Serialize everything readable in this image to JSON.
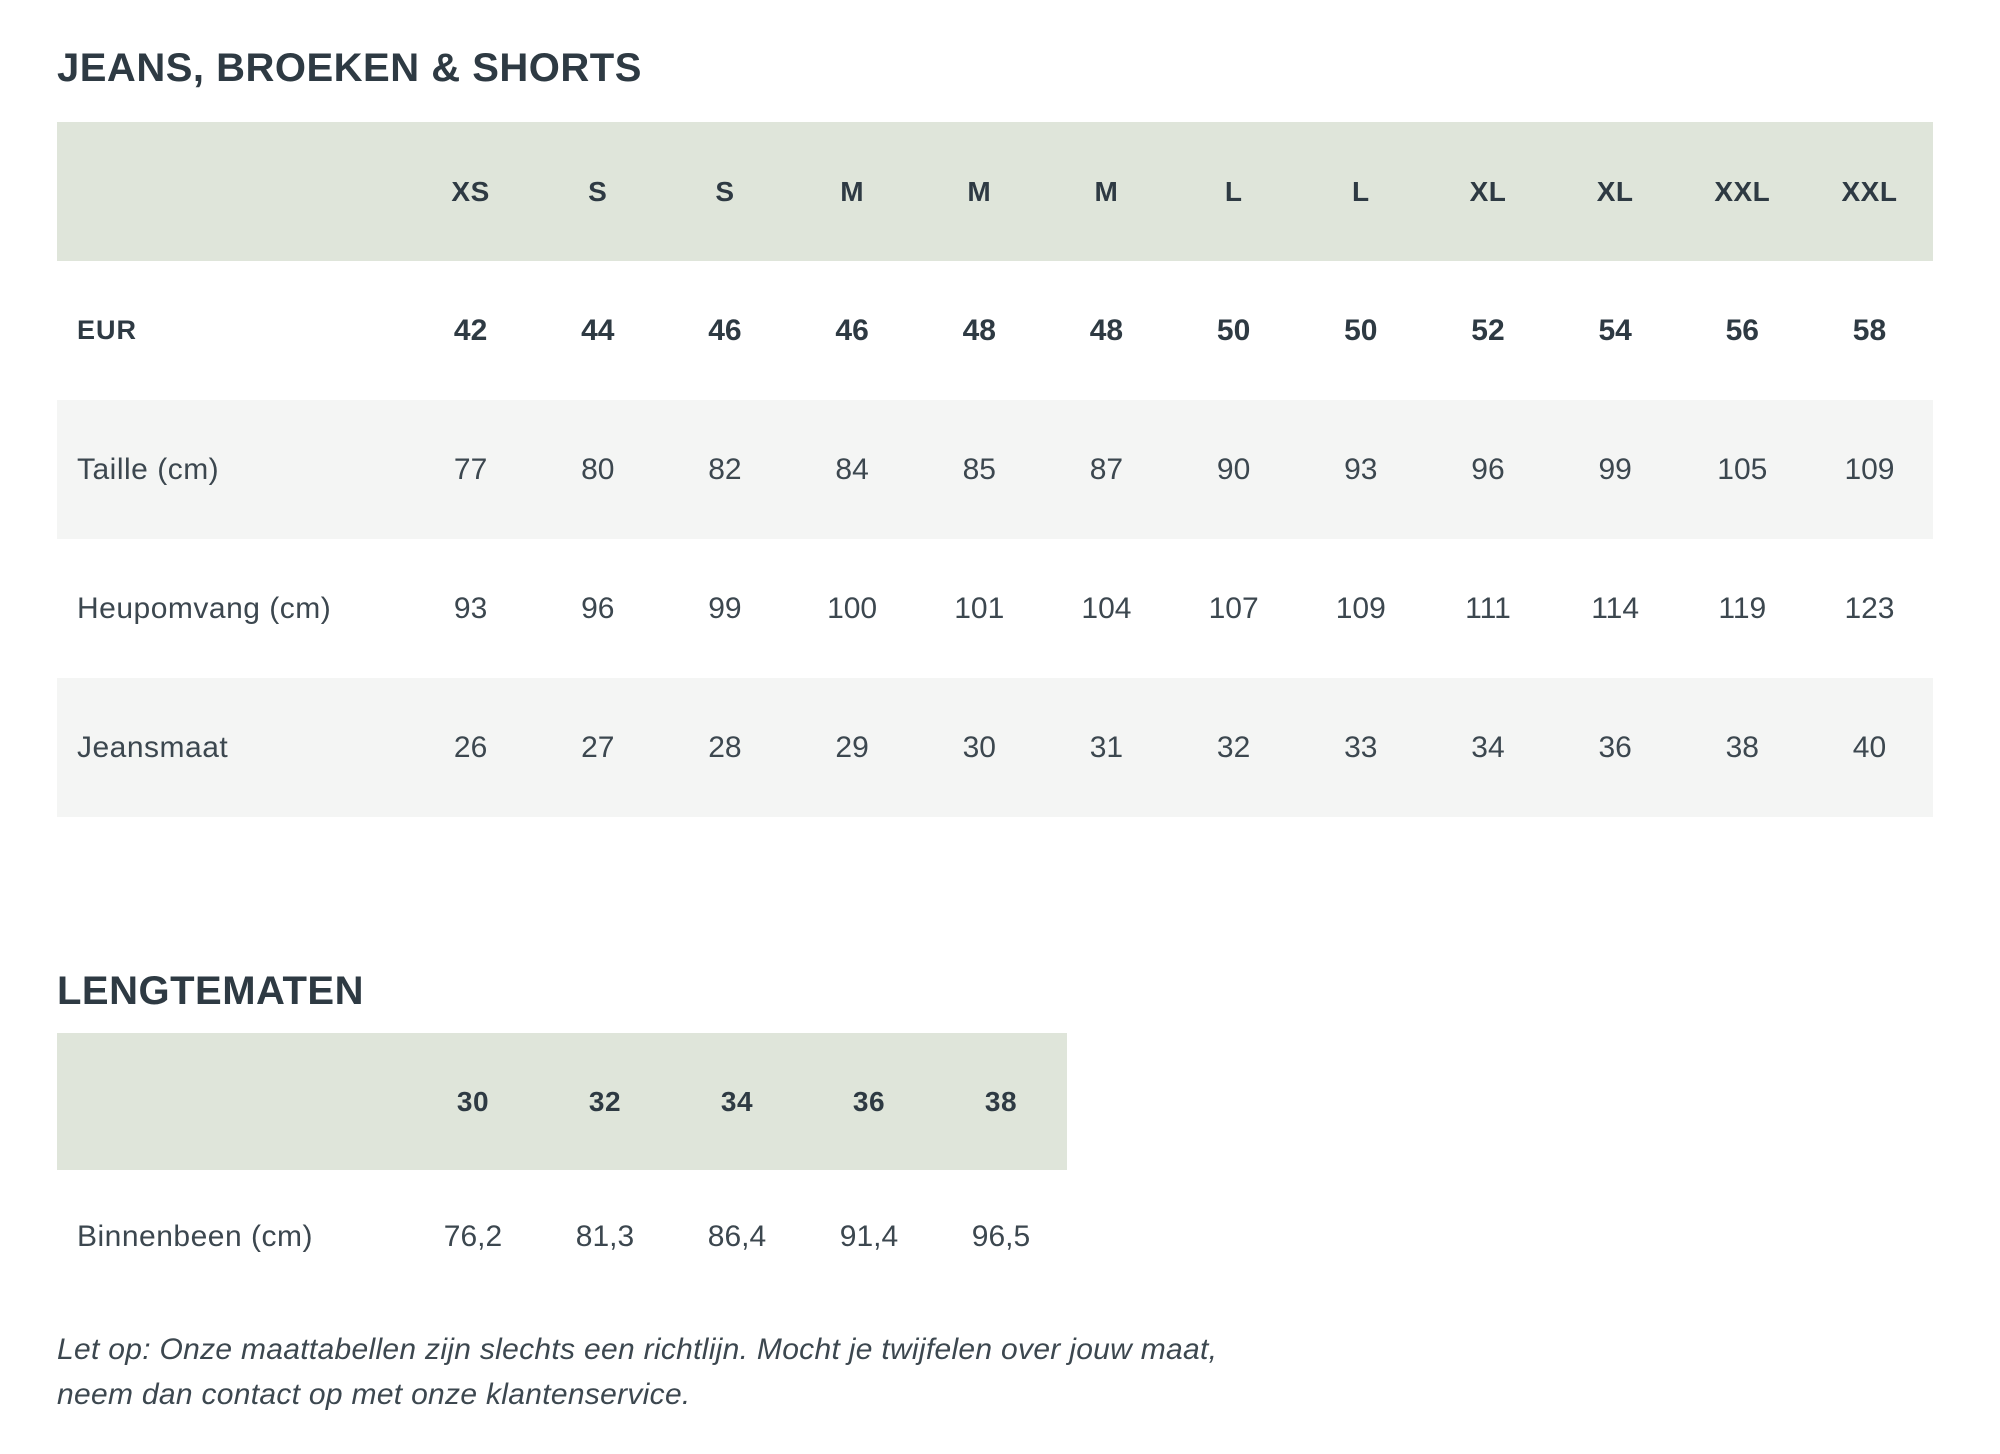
{
  "colors": {
    "header_bg": "#dfe5da",
    "stripe_bg": "#f4f5f4",
    "title_color": "#2e3a43",
    "text_color": "#3c474f"
  },
  "section1": {
    "title": "JEANS, BROEKEN & SHORTS",
    "table": {
      "size_headers": [
        "XS",
        "S",
        "S",
        "M",
        "M",
        "M",
        "L",
        "L",
        "XL",
        "XL",
        "XXL",
        "XXL"
      ],
      "rows": [
        {
          "label": "EUR",
          "values": [
            "42",
            "44",
            "46",
            "46",
            "48",
            "48",
            "50",
            "50",
            "52",
            "54",
            "56",
            "58"
          ]
        },
        {
          "label": "Taille (cm)",
          "values": [
            "77",
            "80",
            "82",
            "84",
            "85",
            "87",
            "90",
            "93",
            "96",
            "99",
            "105",
            "109"
          ]
        },
        {
          "label": "Heupomvang (cm)",
          "values": [
            "93",
            "96",
            "99",
            "100",
            "101",
            "104",
            "107",
            "109",
            "111",
            "114",
            "119",
            "123"
          ]
        },
        {
          "label": "Jeansmaat",
          "values": [
            "26",
            "27",
            "28",
            "29",
            "30",
            "31",
            "32",
            "33",
            "34",
            "36",
            "38",
            "40"
          ]
        }
      ]
    }
  },
  "section2": {
    "title": "LENGTEMATEN",
    "table": {
      "size_headers": [
        "30",
        "32",
        "34",
        "36",
        "38"
      ],
      "rows": [
        {
          "label": "Binnenbeen (cm)",
          "values": [
            "76,2",
            "81,3",
            "86,4",
            "91,4",
            "96,5"
          ]
        }
      ]
    }
  },
  "note": {
    "line1": "Let op: Onze maattabellen zijn slechts een richtlijn. Mocht je twijfelen over jouw maat,",
    "line2": "neem dan contact op met onze klantenservice."
  }
}
